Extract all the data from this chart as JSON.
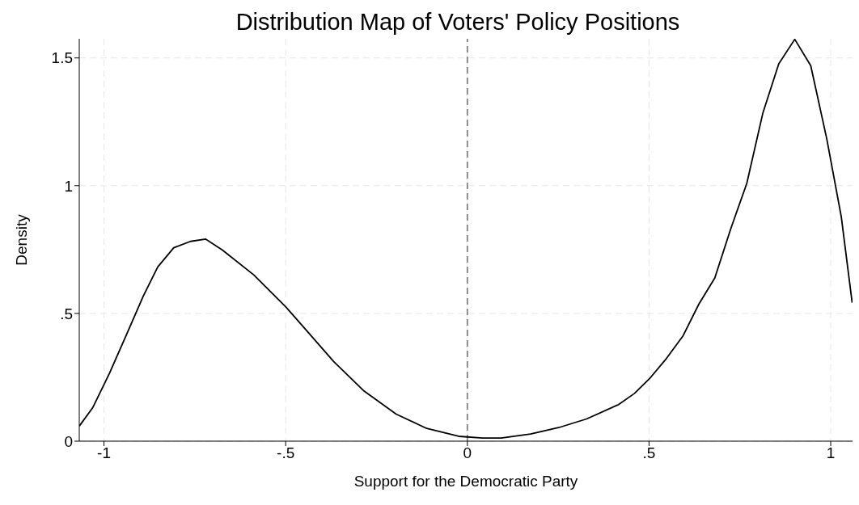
{
  "chart_data": {
    "type": "line",
    "title": "Distribution Map of Voters' Policy Positions",
    "xlabel": "Support for the Democratic Party",
    "ylabel": "Density",
    "x": [
      -1.068,
      -1.031,
      -0.985,
      -0.938,
      -0.892,
      -0.852,
      -0.808,
      -0.762,
      -0.72,
      -0.674,
      -0.588,
      -0.5,
      -0.456,
      -0.368,
      -0.284,
      -0.196,
      -0.112,
      -0.024,
      0.042,
      0.093,
      0.174,
      0.251,
      0.328,
      0.416,
      0.46,
      0.504,
      0.548,
      0.593,
      0.637,
      0.681,
      0.725,
      0.769,
      0.813,
      0.857,
      0.901,
      0.945,
      0.989,
      1.029,
      1.059
    ],
    "series": [
      {
        "color": "#000000",
        "values": [
          0.059,
          0.131,
          0.265,
          0.417,
          0.567,
          0.682,
          0.757,
          0.782,
          0.791,
          0.748,
          0.651,
          0.526,
          0.455,
          0.312,
          0.196,
          0.106,
          0.05,
          0.019,
          0.012,
          0.012,
          0.028,
          0.053,
          0.087,
          0.143,
          0.187,
          0.249,
          0.324,
          0.411,
          0.536,
          0.639,
          0.832,
          1.009,
          1.283,
          1.477,
          1.573,
          1.47,
          1.184,
          0.879,
          0.542
        ]
      }
    ],
    "xlim": [
      -1.068,
      1.06
    ],
    "ylim": [
      0,
      1.575
    ],
    "xticks": [
      {
        "value": -1,
        "label": "-1"
      },
      {
        "value": -0.5,
        "label": "-.5"
      },
      0,
      {
        "value": 0.5,
        "label": ".5"
      },
      1
    ],
    "yticks": [
      0,
      {
        "value": 0.5,
        "label": ".5"
      },
      1,
      1.5
    ],
    "grid": true,
    "marker": "none",
    "line_style": "solid",
    "legend": false,
    "ref_lines": [
      {
        "axis": "x",
        "value": 0,
        "color": "#808080",
        "line_style": "dashed"
      }
    ]
  }
}
